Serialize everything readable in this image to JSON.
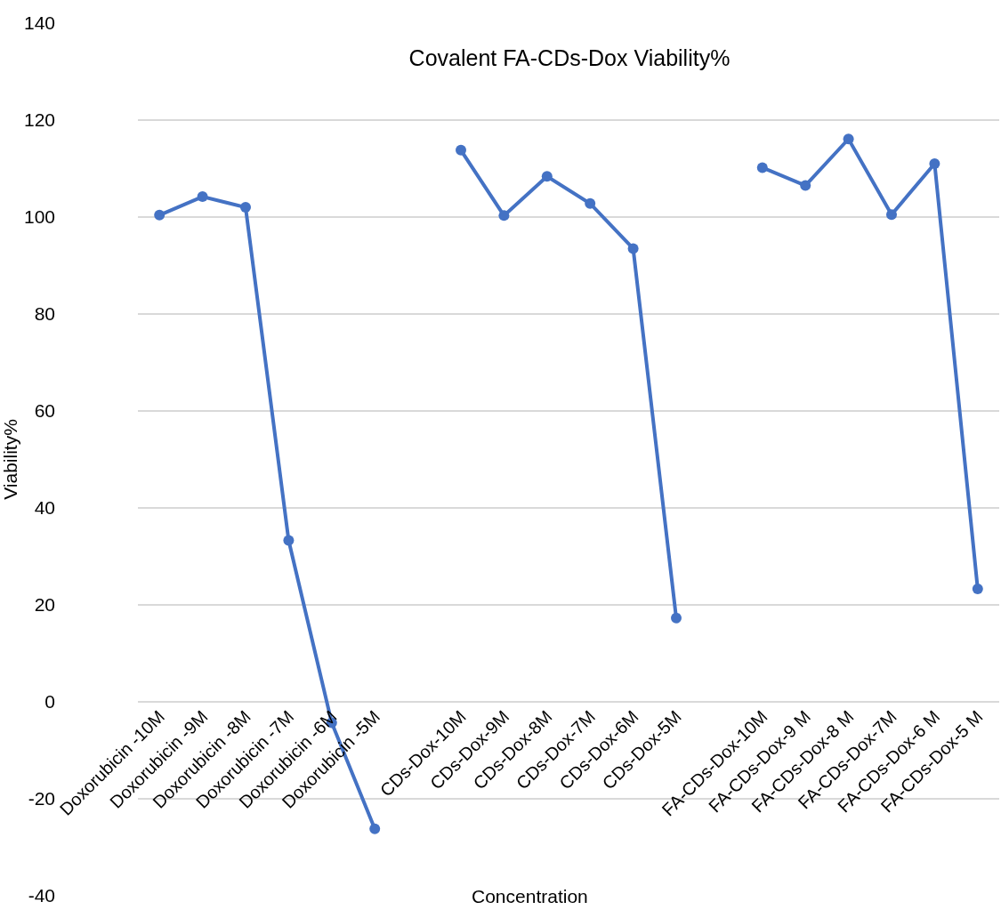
{
  "chart_data": {
    "type": "line",
    "title": "Covalent FA-CDs-Dox Viability%",
    "xlabel": "Concentration",
    "ylabel": "Viability%",
    "categories": [
      "Doxorubicin -10M",
      "Doxorubicin -9M",
      "Doxorubicin -8M",
      "Doxorubicin -7M",
      "Doxorubicin -6M",
      "Doxorubicin -5M",
      null,
      "CDs-Dox-10M",
      "CDs-Dox-9M",
      "CDs-Dox-8M",
      "CDs-Dox-7M",
      "CDs-Dox-6M",
      "CDs-Dox-5M",
      null,
      "FA-CDs-Dox-10M",
      "FA-CDs-Dox-9 M",
      "FA-CDs-Dox-8 M",
      "FA-CDs-Dox-7M",
      "FA-CDs-Dox-6 M",
      "FA-CDs-Dox-5 M"
    ],
    "series": [
      {
        "color": "#4472c4",
        "values": [
          100.4,
          104.2,
          102.0,
          33.3,
          -4.3,
          -26.2,
          null,
          113.8,
          100.3,
          108.4,
          102.8,
          93.5,
          17.3,
          null,
          110.2,
          106.5,
          116.1,
          100.5,
          111.0,
          23.3
        ]
      }
    ],
    "ylim": [
      -40,
      140
    ],
    "yticks": [
      -40,
      -20,
      0,
      20,
      40,
      60,
      80,
      100,
      120,
      140
    ],
    "grid": "y",
    "marker": "circle",
    "line_style": "solid"
  }
}
